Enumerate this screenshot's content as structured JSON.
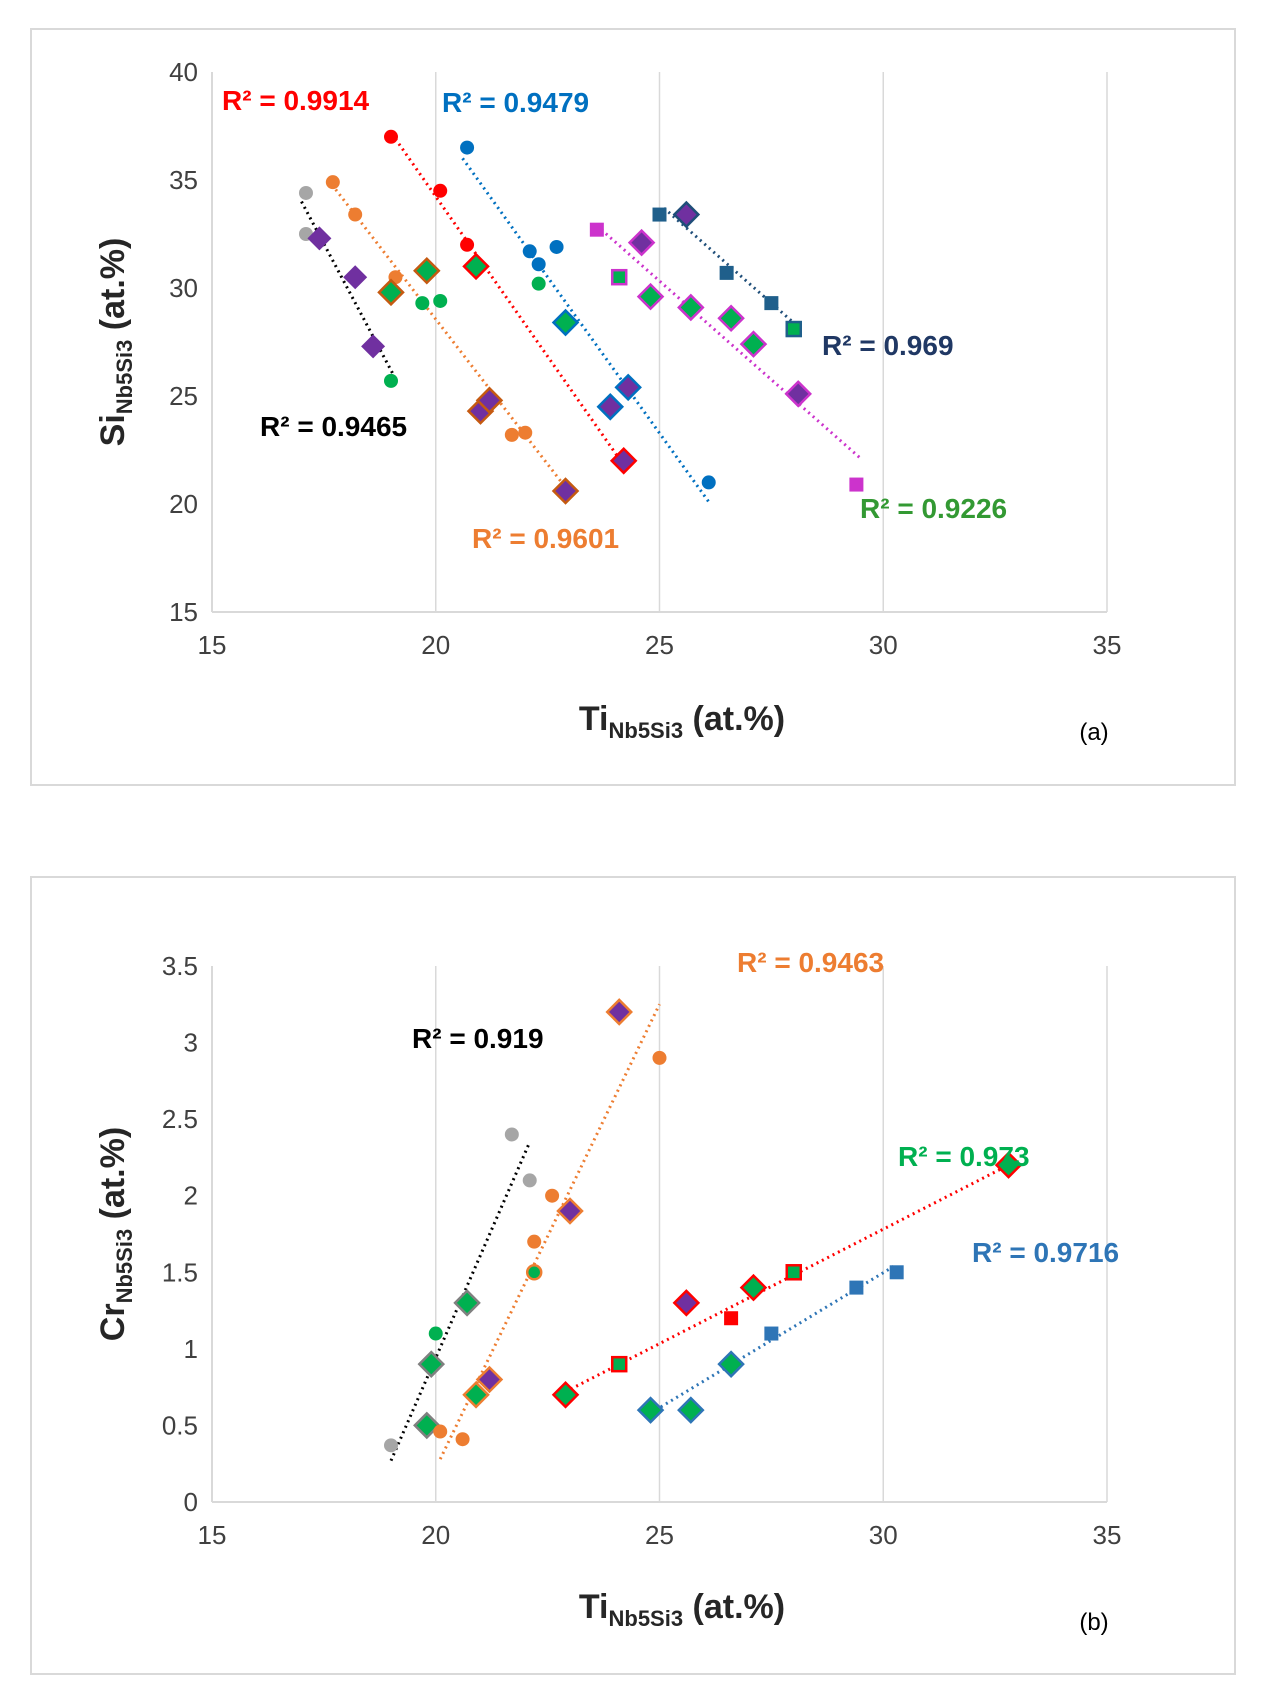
{
  "chart_data": [
    {
      "id": "a",
      "type": "scatter",
      "panel_label": "(a)",
      "xlabel": {
        "main": "Ti",
        "sub": "Nb5Si3",
        "unit": " (at.%)"
      },
      "ylabel": {
        "main": "Si",
        "sub": "Nb5Si3",
        "unit": " (at.%)"
      },
      "xlim": [
        15,
        35
      ],
      "ylim": [
        15,
        40
      ],
      "xticks": [
        15,
        20,
        25,
        30,
        35
      ],
      "yticks": [
        15,
        20,
        25,
        30,
        35,
        40
      ],
      "grid": "vertical",
      "series": [
        {
          "name": "black",
          "trend_color": "#000000",
          "r2": "R² = 0.9465",
          "r2_color": "#000000",
          "trend": [
            [
              17.0,
              34.0
            ],
            [
              19.1,
              25.8
            ]
          ],
          "points": [
            {
              "x": 17.1,
              "y": 34.4,
              "m": "circle",
              "fill": "#a6a6a6"
            },
            {
              "x": 17.1,
              "y": 32.5,
              "m": "circle",
              "fill": "#a6a6a6"
            },
            {
              "x": 17.4,
              "y": 32.3,
              "m": "diamond",
              "fill": "#7030a0"
            },
            {
              "x": 18.2,
              "y": 30.5,
              "m": "diamond",
              "fill": "#7030a0"
            },
            {
              "x": 18.6,
              "y": 27.3,
              "m": "diamond",
              "fill": "#7030a0"
            },
            {
              "x": 19.0,
              "y": 25.7,
              "m": "circle",
              "fill": "#00b050"
            }
          ]
        },
        {
          "name": "orange",
          "trend_color": "#ed7d31",
          "r2": "R² = 0.9601",
          "r2_color": "#ed7d31",
          "trend": [
            [
              17.6,
              35.0
            ],
            [
              23.0,
              20.5
            ]
          ],
          "points": [
            {
              "x": 17.7,
              "y": 34.9,
              "m": "circle",
              "fill": "#ed7d31"
            },
            {
              "x": 18.2,
              "y": 33.4,
              "m": "circle",
              "fill": "#ed7d31"
            },
            {
              "x": 19.1,
              "y": 30.5,
              "m": "circle",
              "fill": "#ed7d31"
            },
            {
              "x": 19.0,
              "y": 29.8,
              "m": "diamond",
              "fill": "#00b050",
              "stroke": "#c55a11"
            },
            {
              "x": 19.8,
              "y": 30.8,
              "m": "diamond",
              "fill": "#00b050",
              "stroke": "#c55a11"
            },
            {
              "x": 19.7,
              "y": 29.3,
              "m": "circle",
              "fill": "#00b050"
            },
            {
              "x": 20.1,
              "y": 29.4,
              "m": "circle",
              "fill": "#00b050"
            },
            {
              "x": 21.0,
              "y": 24.3,
              "m": "diamond",
              "fill": "#7030a0",
              "stroke": "#c55a11"
            },
            {
              "x": 21.2,
              "y": 24.8,
              "m": "diamond",
              "fill": "#7030a0",
              "stroke": "#c55a11"
            },
            {
              "x": 21.7,
              "y": 23.2,
              "m": "circle",
              "fill": "#ed7d31"
            },
            {
              "x": 22.0,
              "y": 23.3,
              "m": "circle",
              "fill": "#ed7d31"
            },
            {
              "x": 22.9,
              "y": 20.6,
              "m": "diamond",
              "fill": "#7030a0",
              "stroke": "#c55a11"
            }
          ]
        },
        {
          "name": "red",
          "trend_color": "#ff0000",
          "r2": "R² = 0.9914",
          "r2_color": "#ff0000",
          "trend": [
            [
              19.1,
              36.9
            ],
            [
              24.2,
              21.8
            ]
          ],
          "points": [
            {
              "x": 19.0,
              "y": 37.0,
              "m": "circle",
              "fill": "#ff0000"
            },
            {
              "x": 20.1,
              "y": 34.5,
              "m": "circle",
              "fill": "#ff0000"
            },
            {
              "x": 20.7,
              "y": 32.0,
              "m": "circle",
              "fill": "#ff0000"
            },
            {
              "x": 20.9,
              "y": 31.0,
              "m": "diamond",
              "fill": "#00b050",
              "stroke": "#ff0000"
            },
            {
              "x": 24.2,
              "y": 22.0,
              "m": "diamond",
              "fill": "#7030a0",
              "stroke": "#ff0000"
            }
          ]
        },
        {
          "name": "blue",
          "trend_color": "#0070c0",
          "r2": "R² = 0.9479",
          "r2_color": "#0070c0",
          "trend": [
            [
              20.6,
              36.0
            ],
            [
              26.1,
              20.1
            ]
          ],
          "points": [
            {
              "x": 20.7,
              "y": 36.5,
              "m": "circle",
              "fill": "#0070c0"
            },
            {
              "x": 22.1,
              "y": 31.7,
              "m": "circle",
              "fill": "#0070c0"
            },
            {
              "x": 22.3,
              "y": 31.1,
              "m": "circle",
              "fill": "#0070c0"
            },
            {
              "x": 22.7,
              "y": 31.9,
              "m": "circle",
              "fill": "#0070c0"
            },
            {
              "x": 22.3,
              "y": 30.2,
              "m": "circle",
              "fill": "#00b050"
            },
            {
              "x": 22.9,
              "y": 28.4,
              "m": "diamond",
              "fill": "#00b050",
              "stroke": "#0070c0"
            },
            {
              "x": 23.9,
              "y": 24.5,
              "m": "diamond",
              "fill": "#7030a0",
              "stroke": "#0070c0"
            },
            {
              "x": 24.3,
              "y": 25.4,
              "m": "diamond",
              "fill": "#7030a0",
              "stroke": "#0070c0"
            },
            {
              "x": 26.1,
              "y": 21.0,
              "m": "circle",
              "fill": "#0070c0"
            }
          ]
        },
        {
          "name": "magenta",
          "trend_color": "#cc33cc",
          "r2": "R² = 0.9226",
          "r2_color": "#339933",
          "trend": [
            [
              23.7,
              32.7
            ],
            [
              29.5,
              22.1
            ]
          ],
          "points": [
            {
              "x": 23.6,
              "y": 32.7,
              "m": "square",
              "fill": "#cc33cc"
            },
            {
              "x": 24.1,
              "y": 30.5,
              "m": "square",
              "fill": "#00b050",
              "stroke": "#cc33cc"
            },
            {
              "x": 24.6,
              "y": 32.1,
              "m": "diamond",
              "fill": "#7030a0",
              "stroke": "#cc33cc"
            },
            {
              "x": 24.8,
              "y": 29.6,
              "m": "diamond",
              "fill": "#00b050",
              "stroke": "#cc33cc"
            },
            {
              "x": 25.7,
              "y": 29.1,
              "m": "diamond",
              "fill": "#00b050",
              "stroke": "#cc33cc"
            },
            {
              "x": 26.6,
              "y": 28.6,
              "m": "diamond",
              "fill": "#00b050",
              "stroke": "#cc33cc"
            },
            {
              "x": 27.1,
              "y": 27.4,
              "m": "diamond",
              "fill": "#00b050",
              "stroke": "#cc33cc"
            },
            {
              "x": 28.1,
              "y": 25.1,
              "m": "diamond",
              "fill": "#7030a0",
              "stroke": "#cc33cc"
            },
            {
              "x": 29.4,
              "y": 20.9,
              "m": "square",
              "fill": "#cc33cc"
            }
          ]
        },
        {
          "name": "navy",
          "trend_color": "#1f4e79",
          "r2": "R² = 0.969",
          "r2_color": "#203864",
          "trend": [
            [
              25.1,
              33.7
            ],
            [
              28.1,
              28.2
            ]
          ],
          "points": [
            {
              "x": 25.0,
              "y": 33.4,
              "m": "square",
              "fill": "#1f5f8b"
            },
            {
              "x": 25.6,
              "y": 33.4,
              "m": "diamond",
              "fill": "#7030a0",
              "stroke": "#1f4e79"
            },
            {
              "x": 26.5,
              "y": 30.7,
              "m": "square",
              "fill": "#1f5f8b"
            },
            {
              "x": 27.5,
              "y": 29.3,
              "m": "square",
              "fill": "#1f5f8b"
            },
            {
              "x": 28.0,
              "y": 28.1,
              "m": "square",
              "fill": "#00b050",
              "stroke": "#1f5f8b"
            }
          ]
        }
      ]
    },
    {
      "id": "b",
      "type": "scatter",
      "panel_label": "(b)",
      "xlabel": {
        "main": "Ti",
        "sub": "Nb5Si3",
        "unit": " (at.%)"
      },
      "ylabel": {
        "main": "Cr",
        "sub": "Nb5Si3",
        "unit": " (at.%)"
      },
      "xlim": [
        15,
        35
      ],
      "ylim": [
        0,
        3.5
      ],
      "xticks": [
        15,
        20,
        25,
        30,
        35
      ],
      "yticks": [
        0,
        0.5,
        1,
        1.5,
        2,
        2.5,
        3,
        3.5
      ],
      "grid": "vertical",
      "series": [
        {
          "name": "black",
          "trend_color": "#000000",
          "r2": "R² = 0.919",
          "r2_color": "#000000",
          "trend": [
            [
              19.0,
              0.27
            ],
            [
              22.1,
              2.35
            ]
          ],
          "points": [
            {
              "x": 19.0,
              "y": 0.37,
              "m": "circle",
              "fill": "#a6a6a6"
            },
            {
              "x": 19.8,
              "y": 0.5,
              "m": "diamond",
              "fill": "#00b050",
              "stroke": "#808080"
            },
            {
              "x": 19.9,
              "y": 0.9,
              "m": "diamond",
              "fill": "#00b050",
              "stroke": "#808080"
            },
            {
              "x": 20.0,
              "y": 1.1,
              "m": "circle",
              "fill": "#00b050"
            },
            {
              "x": 20.7,
              "y": 1.3,
              "m": "diamond",
              "fill": "#00b050",
              "stroke": "#808080"
            },
            {
              "x": 21.7,
              "y": 2.4,
              "m": "circle",
              "fill": "#a6a6a6"
            },
            {
              "x": 22.1,
              "y": 2.1,
              "m": "circle",
              "fill": "#a6a6a6"
            }
          ]
        },
        {
          "name": "orange",
          "trend_color": "#ed7d31",
          "r2": "R² = 0.9463",
          "r2_color": "#ed7d31",
          "trend": [
            [
              20.1,
              0.28
            ],
            [
              25.0,
              3.25
            ]
          ],
          "points": [
            {
              "x": 20.1,
              "y": 0.46,
              "m": "circle",
              "fill": "#ed7d31"
            },
            {
              "x": 20.6,
              "y": 0.41,
              "m": "circle",
              "fill": "#ed7d31"
            },
            {
              "x": 20.9,
              "y": 0.7,
              "m": "diamond",
              "fill": "#00b050",
              "stroke": "#ed7d31"
            },
            {
              "x": 21.2,
              "y": 0.8,
              "m": "diamond",
              "fill": "#7030a0",
              "stroke": "#ed7d31"
            },
            {
              "x": 22.2,
              "y": 1.5,
              "m": "circle",
              "fill": "#00b050",
              "stroke": "#ed7d31"
            },
            {
              "x": 22.2,
              "y": 1.7,
              "m": "circle",
              "fill": "#ed7d31"
            },
            {
              "x": 22.6,
              "y": 2.0,
              "m": "circle",
              "fill": "#ed7d31"
            },
            {
              "x": 23.0,
              "y": 1.9,
              "m": "diamond",
              "fill": "#7030a0",
              "stroke": "#ed7d31"
            },
            {
              "x": 24.1,
              "y": 3.2,
              "m": "diamond",
              "fill": "#7030a0",
              "stroke": "#ed7d31"
            },
            {
              "x": 25.0,
              "y": 2.9,
              "m": "circle",
              "fill": "#ed7d31"
            }
          ]
        },
        {
          "name": "red",
          "trend_color": "#ff0000",
          "r2": "R² = 0.973",
          "r2_color": "#00b050",
          "trend": [
            [
              22.9,
              0.72
            ],
            [
              32.8,
              2.2
            ]
          ],
          "points": [
            {
              "x": 22.9,
              "y": 0.7,
              "m": "diamond",
              "fill": "#00b050",
              "stroke": "#ff0000"
            },
            {
              "x": 24.1,
              "y": 0.9,
              "m": "square",
              "fill": "#00b050",
              "stroke": "#ff0000"
            },
            {
              "x": 25.6,
              "y": 1.3,
              "m": "diamond",
              "fill": "#7030a0",
              "stroke": "#ff0000"
            },
            {
              "x": 26.6,
              "y": 1.2,
              "m": "square",
              "fill": "#ff0000"
            },
            {
              "x": 27.1,
              "y": 1.4,
              "m": "diamond",
              "fill": "#00b050",
              "stroke": "#ff0000"
            },
            {
              "x": 28.0,
              "y": 1.5,
              "m": "square",
              "fill": "#00b050",
              "stroke": "#ff0000"
            },
            {
              "x": 32.8,
              "y": 2.2,
              "m": "diamond",
              "fill": "#00b050",
              "stroke": "#ff0000"
            }
          ]
        },
        {
          "name": "blue",
          "trend_color": "#2e75b6",
          "r2": "R² = 0.9716",
          "r2_color": "#2e75b6",
          "trend": [
            [
              24.8,
              0.58
            ],
            [
              30.3,
              1.55
            ]
          ],
          "points": [
            {
              "x": 24.8,
              "y": 0.6,
              "m": "diamond",
              "fill": "#00b050",
              "stroke": "#2e75b6"
            },
            {
              "x": 25.7,
              "y": 0.6,
              "m": "diamond",
              "fill": "#00b050",
              "stroke": "#2e75b6"
            },
            {
              "x": 26.6,
              "y": 0.9,
              "m": "diamond",
              "fill": "#00b050",
              "stroke": "#2e75b6"
            },
            {
              "x": 27.5,
              "y": 1.1,
              "m": "square",
              "fill": "#2e75b6"
            },
            {
              "x": 29.4,
              "y": 1.4,
              "m": "square",
              "fill": "#2e75b6"
            },
            {
              "x": 30.3,
              "y": 1.5,
              "m": "square",
              "fill": "#2e75b6"
            }
          ]
        }
      ]
    }
  ]
}
